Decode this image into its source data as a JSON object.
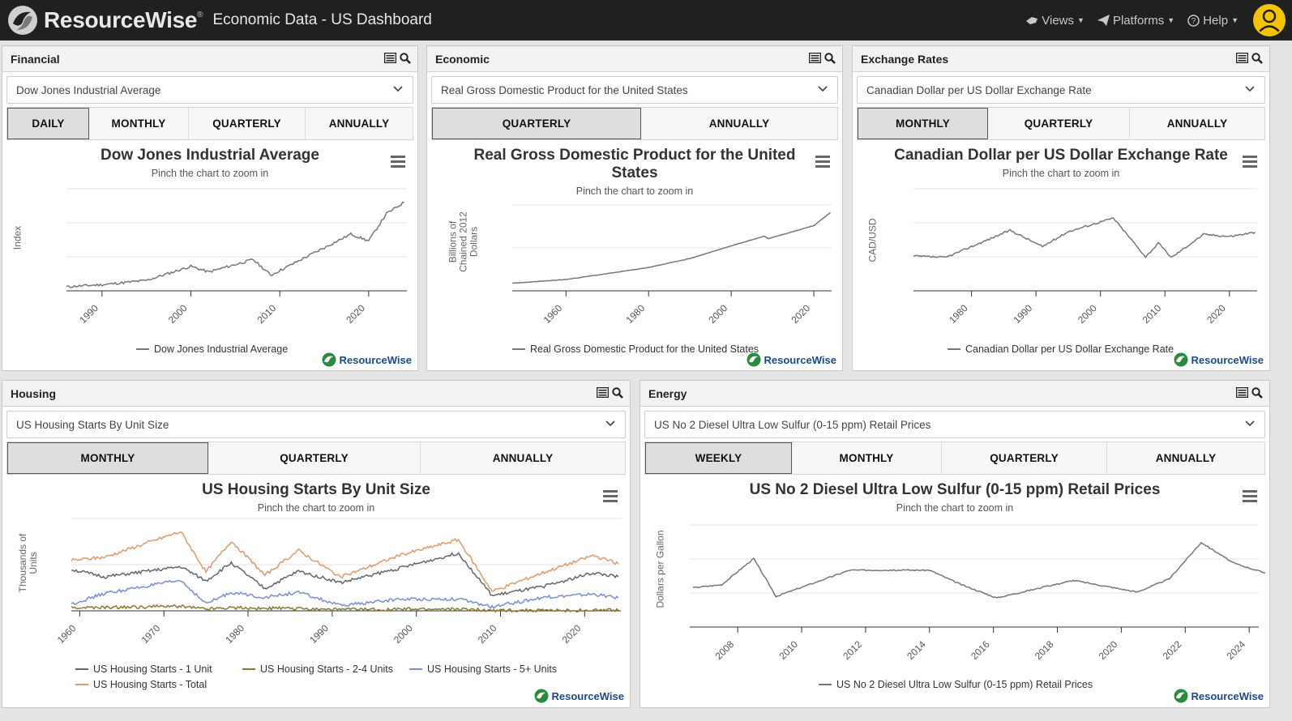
{
  "header": {
    "brand": "ResourceWise",
    "brand_mark": "®",
    "app_title": "Economic Data - US Dashboard",
    "nav": [
      {
        "label": "Views",
        "icon": "hand-pointer-icon"
      },
      {
        "label": "Platforms",
        "icon": "paper-plane-icon"
      },
      {
        "label": "Help",
        "icon": "question-circle-icon"
      }
    ],
    "avatar_icon": "user-icon"
  },
  "watermark": "ResourceWise",
  "zoom_hint": "Pinch the chart to zoom in",
  "panels": {
    "financial": {
      "title": "Financial",
      "select_value": "Dow Jones Industrial Average",
      "buttons": [
        "DAILY",
        "MONTHLY",
        "QUARTERLY",
        "ANNUALLY"
      ],
      "active": "DAILY",
      "chart_title": "Dow Jones Industrial Average",
      "ylabel": "Index",
      "xticks": [
        "1990",
        "2000",
        "2010",
        "2020"
      ],
      "legend": [
        "Dow Jones Industrial Average"
      ]
    },
    "economic": {
      "title": "Economic",
      "select_value": "Real Gross Domestic Product for the United States",
      "buttons": [
        "QUARTERLY",
        "ANNUALLY"
      ],
      "active": "QUARTERLY",
      "chart_title_1": "Real Gross Domestic Product for the United",
      "chart_title_2": "States",
      "ylabel_1": "Billions of",
      "ylabel_2": "Chained 2012",
      "ylabel_3": "Dollars",
      "xticks": [
        "1960",
        "1980",
        "2000",
        "2020"
      ],
      "legend": [
        "Real Gross Domestic Product for the United States"
      ]
    },
    "exchange": {
      "title": "Exchange Rates",
      "select_value": "Canadian Dollar per US Dollar Exchange Rate",
      "buttons": [
        "MONTHLY",
        "QUARTERLY",
        "ANNUALLY"
      ],
      "active": "MONTHLY",
      "chart_title": "Canadian Dollar per US Dollar Exchange Rate",
      "ylabel": "CAD/USD",
      "xticks": [
        "1980",
        "1990",
        "2000",
        "2010",
        "2020"
      ],
      "legend": [
        "Canadian Dollar per US Dollar Exchange Rate"
      ]
    },
    "housing": {
      "title": "Housing",
      "select_value": "US Housing Starts By Unit Size",
      "buttons": [
        "MONTHLY",
        "QUARTERLY",
        "ANNUALLY"
      ],
      "active": "MONTHLY",
      "chart_title": "US Housing Starts By Unit Size",
      "ylabel_1": "Thousands of",
      "ylabel_2": "Units",
      "xticks": [
        "1960",
        "1970",
        "1980",
        "1990",
        "2000",
        "2010",
        "2020"
      ],
      "legend": [
        "US Housing Starts - 1 Unit",
        "US Housing Starts - 2-4 Units",
        "US Housing Starts - 5+ Units",
        "US Housing Starts - Total"
      ]
    },
    "energy": {
      "title": "Energy",
      "select_value": "US No 2 Diesel Ultra Low Sulfur (0-15 ppm) Retail Prices",
      "buttons": [
        "WEEKLY",
        "MONTHLY",
        "QUARTERLY",
        "ANNUALLY"
      ],
      "active": "WEEKLY",
      "chart_title": "US No 2 Diesel Ultra Low Sulfur (0-15 ppm) Retail Prices",
      "ylabel": "Dollars per Gallon",
      "xticks": [
        "2008",
        "2010",
        "2012",
        "2014",
        "2016",
        "2018",
        "2020",
        "2022",
        "2024"
      ],
      "legend": [
        "US No 2 Diesel Ultra Low Sulfur (0-15 ppm) Retail Prices"
      ]
    }
  },
  "chart_data": [
    {
      "type": "line",
      "title": "Dow Jones Industrial Average",
      "ylabel": "Index",
      "x": [
        1986,
        1990,
        1995,
        2000,
        2002,
        2007,
        2009,
        2013,
        2018,
        2020,
        2022,
        2024
      ],
      "series": [
        {
          "name": "Dow Jones Industrial Average",
          "color": "#777777",
          "values": [
            1800,
            2700,
            4600,
            10800,
            8300,
            13800,
            6900,
            15000,
            25000,
            22000,
            34000,
            39000
          ]
        }
      ]
    },
    {
      "type": "line",
      "title": "Real Gross Domestic Product for the United States",
      "x": [
        1947,
        1960,
        1970,
        1980,
        1990,
        2000,
        2008,
        2009,
        2020,
        2024
      ],
      "series": [
        {
          "name": "Real Gross Domestic Product for the United States",
          "color": "#777777",
          "values": [
            2200,
            3300,
            5000,
            6800,
            9400,
            13100,
            15900,
            15200,
            19000,
            22800
          ]
        }
      ]
    },
    {
      "type": "line",
      "title": "Canadian Dollar per US Dollar Exchange Rate",
      "ylabel": "CAD/USD",
      "x": [
        1971,
        1976,
        1986,
        1991,
        1995,
        2002,
        2007,
        2009,
        2011,
        2016,
        2020,
        2024
      ],
      "series": [
        {
          "name": "Canadian Dollar per US Dollar Exchange Rate",
          "color": "#777777",
          "values": [
            1.01,
            0.99,
            1.39,
            1.15,
            1.37,
            1.57,
            1.0,
            1.2,
            0.99,
            1.33,
            1.3,
            1.36
          ]
        }
      ]
    },
    {
      "type": "line",
      "title": "US Housing Starts By Unit Size",
      "x": [
        1959,
        1963,
        1972,
        1975,
        1978,
        1982,
        1986,
        1991,
        1998,
        2005,
        2009,
        2015,
        2021,
        2024
      ],
      "series": [
        {
          "name": "US Housing Starts - 1 Unit",
          "color": "#666666",
          "values": [
            1230,
            1010,
            1310,
            890,
            1430,
            660,
            1180,
            840,
            1270,
            1720,
            450,
            720,
            1130,
            1010
          ]
        },
        {
          "name": "US Housing Starts - 2-4 Units",
          "color": "#8a7a30",
          "values": [
            90,
            95,
            140,
            60,
            100,
            70,
            70,
            40,
            45,
            50,
            15,
            12,
            15,
            15
          ]
        },
        {
          "name": "US Housing Starts - 5+ Units",
          "color": "#7b8fd0",
          "values": [
            200,
            520,
            910,
            210,
            550,
            400,
            550,
            150,
            350,
            350,
            110,
            400,
            500,
            380
          ]
        },
        {
          "name": "US Housing Starts - Total",
          "color": "#e09a6a",
          "values": [
            1500,
            1600,
            2360,
            1160,
            2080,
            1060,
            1800,
            1000,
            1650,
            2120,
            580,
            1130,
            1650,
            1400
          ]
        }
      ]
    },
    {
      "type": "line",
      "title": "US No 2 Diesel Ultra Low Sulfur (0-15 ppm) Retail Prices",
      "ylabel": "Dollars per Gallon",
      "x": [
        2006.6,
        2007.5,
        2008.5,
        2009.2,
        2011.5,
        2014,
        2015,
        2016.1,
        2018.5,
        2020.5,
        2021.5,
        2022.5,
        2023.5,
        2024.5
      ],
      "series": [
        {
          "name": "US No 2 Diesel Ultra Low Sulfur (0-15 ppm) Retail Prices",
          "color": "#777777",
          "values": [
            2.7,
            2.9,
            4.7,
            2.1,
            3.9,
            3.9,
            2.9,
            2.0,
            3.2,
            2.4,
            3.3,
            5.8,
            4.4,
            3.7
          ]
        }
      ]
    }
  ]
}
